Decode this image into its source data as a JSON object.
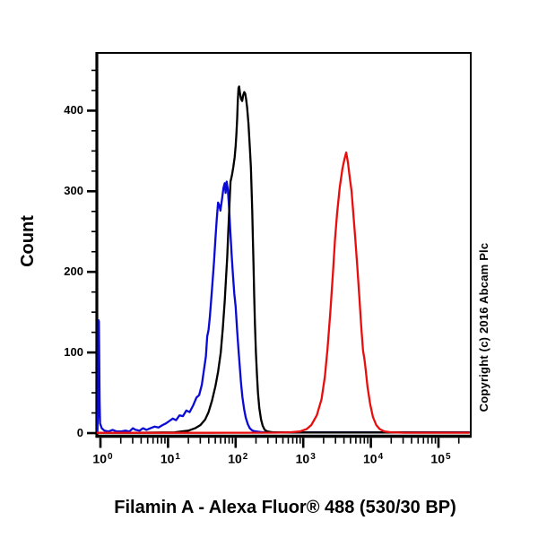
{
  "figure": {
    "title": "Filamin A - Alexa Fluor® 488 (530/30 BP)",
    "y_axis_label": "Count",
    "copyright": "Copyright (c) 2016 Abcam Plc"
  },
  "chart_data": {
    "type": "line",
    "subtype": "flow-cytometry-histogram-overlay",
    "title": "Filamin A - Alexa Fluor® 488 (530/30 BP)",
    "xlabel": "Filamin A - Alexa Fluor® 488 (530/30 BP)",
    "ylabel": "Count",
    "grid": false,
    "legend": null,
    "x_axis": {
      "scale": "log10",
      "lim_log": [
        -0.053,
        5.48
      ],
      "decades": [
        0,
        1,
        2,
        3,
        4,
        5
      ],
      "ticks": [
        {
          "base": "10",
          "exp": "0"
        },
        {
          "base": "10",
          "exp": "1"
        },
        {
          "base": "10",
          "exp": "2"
        },
        {
          "base": "10",
          "exp": "3"
        },
        {
          "base": "10",
          "exp": "4"
        },
        {
          "base": "10",
          "exp": "5"
        }
      ]
    },
    "y_axis": {
      "lim": [
        0,
        471
      ],
      "major": [
        0,
        100,
        200,
        300,
        400
      ],
      "major_labels": [
        "0",
        "100",
        "200",
        "300",
        "400"
      ],
      "minor": [
        25,
        50,
        75,
        125,
        150,
        175,
        225,
        250,
        275,
        325,
        350,
        375,
        425,
        450
      ]
    },
    "series": [
      {
        "name": "blue",
        "color": "#0a0ad6",
        "peak_summary": {
          "peak_count": 312,
          "peak_x_log10": 1.87
        },
        "points": [
          [
            -0.053,
            1
          ],
          [
            -0.045,
            2
          ],
          [
            -0.035,
            30
          ],
          [
            -0.028,
            140
          ],
          [
            -0.022,
            138
          ],
          [
            -0.012,
            40
          ],
          [
            -0.005,
            12
          ],
          [
            0.02,
            6
          ],
          [
            0.06,
            3
          ],
          [
            0.12,
            2
          ],
          [
            0.18,
            4
          ],
          [
            0.24,
            2
          ],
          [
            0.3,
            2
          ],
          [
            0.37,
            3
          ],
          [
            0.43,
            2
          ],
          [
            0.48,
            6
          ],
          [
            0.52,
            4
          ],
          [
            0.58,
            3
          ],
          [
            0.63,
            6
          ],
          [
            0.68,
            4
          ],
          [
            0.74,
            6
          ],
          [
            0.8,
            8
          ],
          [
            0.86,
            7
          ],
          [
            0.92,
            10
          ],
          [
            0.97,
            12
          ],
          [
            1.02,
            15
          ],
          [
            1.07,
            18
          ],
          [
            1.12,
            16
          ],
          [
            1.17,
            22
          ],
          [
            1.22,
            21
          ],
          [
            1.27,
            28
          ],
          [
            1.32,
            26
          ],
          [
            1.37,
            34
          ],
          [
            1.42,
            44
          ],
          [
            1.46,
            47
          ],
          [
            1.5,
            60
          ],
          [
            1.53,
            78
          ],
          [
            1.56,
            95
          ],
          [
            1.58,
            120
          ],
          [
            1.6,
            128
          ],
          [
            1.62,
            145
          ],
          [
            1.65,
            178
          ],
          [
            1.68,
            213
          ],
          [
            1.7,
            240
          ],
          [
            1.72,
            265
          ],
          [
            1.74,
            286
          ],
          [
            1.76,
            282
          ],
          [
            1.775,
            276
          ],
          [
            1.8,
            291
          ],
          [
            1.82,
            304
          ],
          [
            1.838,
            310
          ],
          [
            1.852,
            298
          ],
          [
            1.868,
            312
          ],
          [
            1.885,
            302
          ],
          [
            1.9,
            283
          ],
          [
            1.92,
            252
          ],
          [
            1.94,
            222
          ],
          [
            1.96,
            196
          ],
          [
            1.98,
            173
          ],
          [
            2.0,
            157
          ],
          [
            2.02,
            130
          ],
          [
            2.04,
            106
          ],
          [
            2.06,
            84
          ],
          [
            2.08,
            62
          ],
          [
            2.1,
            45
          ],
          [
            2.125,
            30
          ],
          [
            2.15,
            19
          ],
          [
            2.18,
            11
          ],
          [
            2.21,
            6
          ],
          [
            2.25,
            3
          ],
          [
            2.3,
            2
          ],
          [
            2.4,
            1
          ],
          [
            2.6,
            1
          ],
          [
            3.0,
            1
          ],
          [
            4.0,
            1
          ],
          [
            5.0,
            1
          ],
          [
            5.45,
            1
          ]
        ]
      },
      {
        "name": "black",
        "color": "#000000",
        "peak_summary": {
          "peak_count": 430,
          "peak_x_log10": 2.05
        },
        "points": [
          [
            -0.053,
            0.5
          ],
          [
            0.5,
            0.5
          ],
          [
            0.9,
            0.8
          ],
          [
            1.1,
            1
          ],
          [
            1.2,
            2
          ],
          [
            1.3,
            3
          ],
          [
            1.4,
            6
          ],
          [
            1.48,
            10
          ],
          [
            1.55,
            17
          ],
          [
            1.6,
            26
          ],
          [
            1.65,
            40
          ],
          [
            1.7,
            58
          ],
          [
            1.74,
            76
          ],
          [
            1.78,
            100
          ],
          [
            1.81,
            130
          ],
          [
            1.84,
            165
          ],
          [
            1.86,
            195
          ],
          [
            1.875,
            218
          ],
          [
            1.89,
            248
          ],
          [
            1.9,
            268
          ],
          [
            1.915,
            296
          ],
          [
            1.925,
            312
          ],
          [
            1.945,
            320
          ],
          [
            1.965,
            330
          ],
          [
            1.985,
            342
          ],
          [
            2.0,
            356
          ],
          [
            2.012,
            372
          ],
          [
            2.022,
            390
          ],
          [
            2.032,
            412
          ],
          [
            2.042,
            428
          ],
          [
            2.052,
            430
          ],
          [
            2.065,
            421
          ],
          [
            2.082,
            414
          ],
          [
            2.097,
            412
          ],
          [
            2.112,
            419
          ],
          [
            2.127,
            423
          ],
          [
            2.142,
            421
          ],
          [
            2.155,
            414
          ],
          [
            2.17,
            404
          ],
          [
            2.19,
            384
          ],
          [
            2.21,
            355
          ],
          [
            2.225,
            330
          ],
          [
            2.235,
            305
          ],
          [
            2.245,
            276
          ],
          [
            2.255,
            242
          ],
          [
            2.265,
            206
          ],
          [
            2.275,
            170
          ],
          [
            2.285,
            136
          ],
          [
            2.3,
            100
          ],
          [
            2.315,
            72
          ],
          [
            2.33,
            50
          ],
          [
            2.35,
            31
          ],
          [
            2.375,
            17
          ],
          [
            2.4,
            9
          ],
          [
            2.43,
            4
          ],
          [
            2.47,
            2
          ],
          [
            2.55,
            1
          ],
          [
            2.7,
            0.8
          ],
          [
            3.5,
            0.8
          ],
          [
            4.5,
            0.8
          ],
          [
            5.45,
            0.8
          ]
        ]
      },
      {
        "name": "red",
        "color": "#e80e0e",
        "peak_summary": {
          "peak_count": 348,
          "peak_x_log10": 3.63
        },
        "points": [
          [
            -0.053,
            0.3
          ],
          [
            0.8,
            0.3
          ],
          [
            1.6,
            0.3
          ],
          [
            2.2,
            0.4
          ],
          [
            2.6,
            0.6
          ],
          [
            2.8,
            1
          ],
          [
            2.95,
            2
          ],
          [
            3.05,
            5
          ],
          [
            3.12,
            10
          ],
          [
            3.2,
            22
          ],
          [
            3.27,
            42
          ],
          [
            3.32,
            70
          ],
          [
            3.36,
            105
          ],
          [
            3.4,
            150
          ],
          [
            3.44,
            200
          ],
          [
            3.47,
            240
          ],
          [
            3.5,
            272
          ],
          [
            3.54,
            305
          ],
          [
            3.58,
            328
          ],
          [
            3.61,
            340
          ],
          [
            3.635,
            348
          ],
          [
            3.66,
            336
          ],
          [
            3.68,
            322
          ],
          [
            3.7,
            309
          ],
          [
            3.715,
            300
          ],
          [
            3.74,
            273
          ],
          [
            3.77,
            240
          ],
          [
            3.8,
            206
          ],
          [
            3.83,
            168
          ],
          [
            3.86,
            130
          ],
          [
            3.885,
            102
          ],
          [
            3.905,
            92
          ],
          [
            3.925,
            78
          ],
          [
            3.95,
            58
          ],
          [
            3.99,
            36
          ],
          [
            4.03,
            20
          ],
          [
            4.08,
            10
          ],
          [
            4.13,
            5
          ],
          [
            4.2,
            2
          ],
          [
            4.3,
            1
          ],
          [
            4.5,
            0.5
          ],
          [
            5.0,
            0.4
          ],
          [
            5.45,
            0.4
          ]
        ]
      }
    ]
  }
}
